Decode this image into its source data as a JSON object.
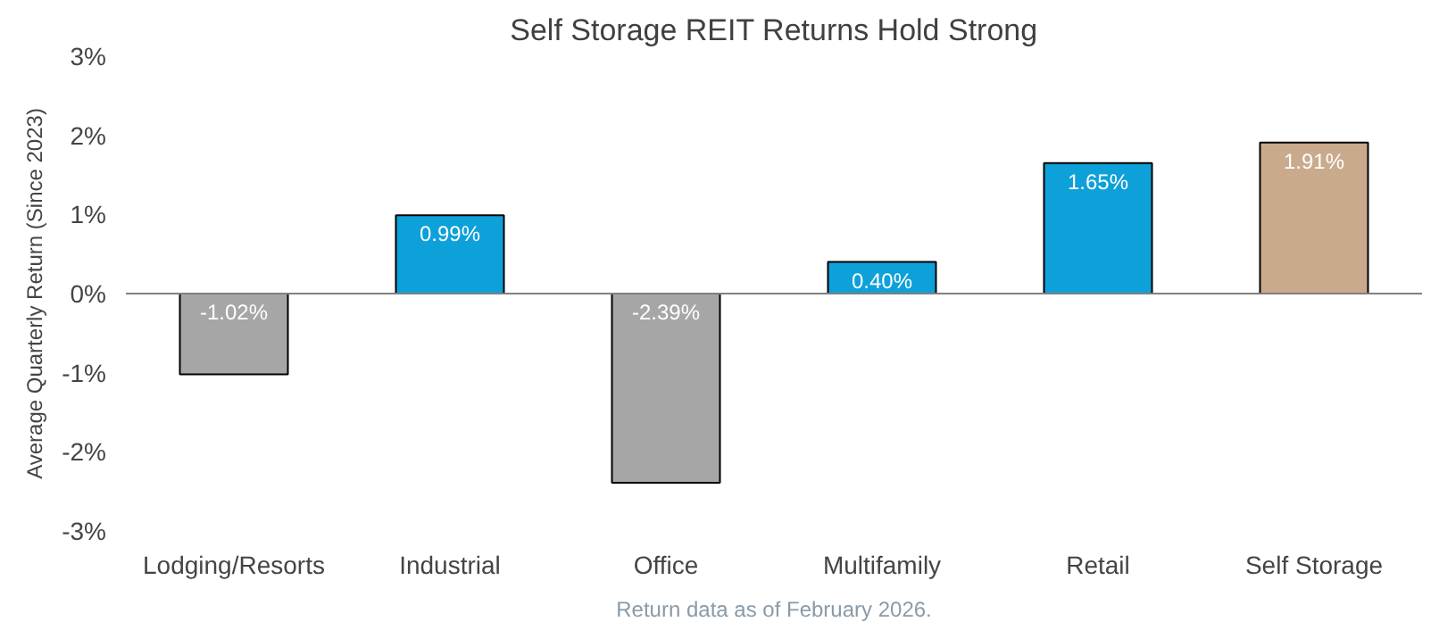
{
  "chart_data": {
    "type": "bar",
    "title": "Self Storage REIT Returns Hold Strong",
    "ylabel": "Average Quarterly Return (Since 2023)",
    "categories": [
      "Lodging/Resorts",
      "Industrial",
      "Office",
      "Multifamily",
      "Retail",
      "Self Storage"
    ],
    "values": [
      -1.02,
      0.99,
      -2.39,
      0.4,
      1.65,
      1.91
    ],
    "colors": [
      "#a6a6a6",
      "#0ea0d9",
      "#a6a6a6",
      "#0ea0d9",
      "#0ea0d9",
      "#c9aa8c"
    ],
    "value_labels": [
      "-1.02%",
      "0.99%",
      "-2.39%",
      "0.40%",
      "1.65%",
      "1.91%"
    ],
    "ylim": [
      -3,
      3
    ],
    "yticks": [
      {
        "value": -3,
        "label": "-3%"
      },
      {
        "value": -2,
        "label": "-2%"
      },
      {
        "value": -1,
        "label": "-1%"
      },
      {
        "value": 0,
        "label": "0%"
      },
      {
        "value": 1,
        "label": "1%"
      },
      {
        "value": 2,
        "label": "2%"
      },
      {
        "value": 3,
        "label": "3%"
      }
    ],
    "ref_lines": [
      {
        "axis": "y",
        "value": 0,
        "label": null,
        "color": "#808080"
      }
    ],
    "grid": false,
    "annotations": [
      "Return data as of February 2026."
    ]
  }
}
